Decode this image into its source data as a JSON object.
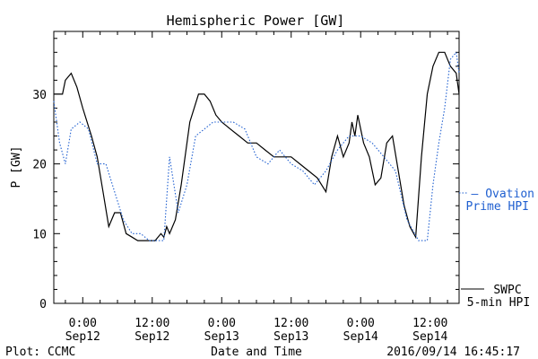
{
  "chart_data": {
    "type": "line",
    "title": "Hemispheric Power [GW]",
    "ylabel": "P [GW]",
    "xlabel": "Date and Time",
    "xlim": [
      "2016-09-11 19:00",
      "2016-09-14 17:00"
    ],
    "ylim": [
      0,
      39
    ],
    "yticks": [
      0,
      10,
      20,
      30
    ],
    "xticks": [
      {
        "x": "2016-09-12 00:00",
        "time": "0:00",
        "date": "Sep12"
      },
      {
        "x": "2016-09-12 12:00",
        "time": "12:00",
        "date": "Sep12"
      },
      {
        "x": "2016-09-13 00:00",
        "time": "0:00",
        "date": "Sep13"
      },
      {
        "x": "2016-09-13 12:00",
        "time": "12:00",
        "date": "Sep13"
      },
      {
        "x": "2016-09-14 00:00",
        "time": "0:00",
        "date": "Sep14"
      },
      {
        "x": "2016-09-14 12:00",
        "time": "12:00",
        "date": "Sep14"
      }
    ],
    "grid": false,
    "legend_position": "right",
    "series": [
      {
        "name": "SWPC 5-min HPI",
        "color": "#000000",
        "style": "solid",
        "x": [
          "2016-09-11 19:00",
          "2016-09-11 20:30",
          "2016-09-11 21:00",
          "2016-09-11 22:00",
          "2016-09-11 23:00",
          "2016-09-12 00:00",
          "2016-09-12 01:30",
          "2016-09-12 02:30",
          "2016-09-12 03:30",
          "2016-09-12 04:30",
          "2016-09-12 05:30",
          "2016-09-12 06:30",
          "2016-09-12 07:30",
          "2016-09-12 08:30",
          "2016-09-12 09:30",
          "2016-09-12 10:30",
          "2016-09-12 11:30",
          "2016-09-12 12:30",
          "2016-09-12 13:30",
          "2016-09-12 14:00",
          "2016-09-12 14:30",
          "2016-09-12 15:00",
          "2016-09-12 16:00",
          "2016-09-12 17:00",
          "2016-09-12 18:30",
          "2016-09-12 20:00",
          "2016-09-12 21:00",
          "2016-09-12 22:00",
          "2016-09-12 23:00",
          "2016-09-13 00:00",
          "2016-09-13 01:30",
          "2016-09-13 03:00",
          "2016-09-13 04:30",
          "2016-09-13 06:00",
          "2016-09-13 07:30",
          "2016-09-13 09:00",
          "2016-09-13 10:30",
          "2016-09-13 12:00",
          "2016-09-13 13:30",
          "2016-09-13 15:00",
          "2016-09-13 16:30",
          "2016-09-13 18:00",
          "2016-09-13 19:00",
          "2016-09-13 20:00",
          "2016-09-13 21:00",
          "2016-09-13 22:00",
          "2016-09-13 22:30",
          "2016-09-13 23:00",
          "2016-09-13 23:30",
          "2016-09-14 00:30",
          "2016-09-14 01:30",
          "2016-09-14 02:30",
          "2016-09-14 03:30",
          "2016-09-14 04:30",
          "2016-09-14 05:30",
          "2016-09-14 06:30",
          "2016-09-14 07:30",
          "2016-09-14 08:30",
          "2016-09-14 09:30",
          "2016-09-14 10:30",
          "2016-09-14 11:30",
          "2016-09-14 12:30",
          "2016-09-14 13:30",
          "2016-09-14 14:30",
          "2016-09-14 15:30",
          "2016-09-14 16:30",
          "2016-09-14 17:00"
        ],
        "y": [
          30,
          30,
          32,
          33,
          31,
          28,
          24,
          21,
          16,
          11,
          13,
          13,
          10,
          9.5,
          9,
          9,
          9,
          9,
          10,
          9.5,
          11,
          10,
          12,
          17,
          26,
          30,
          30,
          29,
          27,
          26,
          25,
          24,
          23,
          23,
          22,
          21,
          21,
          21,
          20,
          19,
          18,
          16,
          21,
          24,
          21,
          23,
          26,
          24,
          27,
          23,
          21,
          17,
          18,
          23,
          24,
          19,
          14,
          11,
          9.5,
          21,
          30,
          34,
          36,
          36,
          34,
          33,
          30
        ]
      },
      {
        "name": "Ovation Prime HPI",
        "color": "#1f5fd0",
        "style": "dotted",
        "x": [
          "2016-09-11 19:00",
          "2016-09-11 20:00",
          "2016-09-11 21:00",
          "2016-09-11 22:00",
          "2016-09-11 23:30",
          "2016-09-12 01:00",
          "2016-09-12 02:30",
          "2016-09-12 04:00",
          "2016-09-12 05:30",
          "2016-09-12 07:00",
          "2016-09-12 08:30",
          "2016-09-12 10:00",
          "2016-09-12 11:30",
          "2016-09-12 13:00",
          "2016-09-12 14:00",
          "2016-09-12 15:00",
          "2016-09-12 16:30",
          "2016-09-12 18:00",
          "2016-09-12 19:30",
          "2016-09-12 21:00",
          "2016-09-12 22:30",
          "2016-09-13 00:00",
          "2016-09-13 02:00",
          "2016-09-13 04:00",
          "2016-09-13 06:00",
          "2016-09-13 08:00",
          "2016-09-13 10:00",
          "2016-09-13 12:00",
          "2016-09-13 14:00",
          "2016-09-13 16:00",
          "2016-09-13 18:00",
          "2016-09-13 20:00",
          "2016-09-13 22:00",
          "2016-09-14 00:00",
          "2016-09-14 02:00",
          "2016-09-14 04:00",
          "2016-09-14 06:00",
          "2016-09-14 08:00",
          "2016-09-14 10:00",
          "2016-09-14 11:30",
          "2016-09-14 12:30",
          "2016-09-14 13:30",
          "2016-09-14 14:30",
          "2016-09-14 15:30",
          "2016-09-14 16:30",
          "2016-09-14 17:00"
        ],
        "y": [
          29,
          23,
          20,
          25,
          26,
          25,
          20,
          20,
          16,
          12,
          10,
          10,
          9,
          9,
          9,
          21,
          13,
          17,
          24,
          25,
          26,
          26,
          26,
          25,
          21,
          20,
          22,
          20,
          19,
          17,
          19,
          22,
          24,
          24,
          23,
          21,
          19,
          12,
          9,
          9,
          17,
          23,
          28,
          35,
          36,
          33
        ]
      }
    ],
    "legend": [
      {
        "lines": [
          "SWPC",
          "5-min HPI"
        ],
        "color": "#000000"
      },
      {
        "lines": [
          "— Ovation",
          "Prime HPI"
        ],
        "color": "#1f5fd0"
      }
    ]
  },
  "footer": {
    "left": "Plot: CCMC",
    "center": "Date and Time",
    "right": "2016/09/14 16:45:17"
  }
}
